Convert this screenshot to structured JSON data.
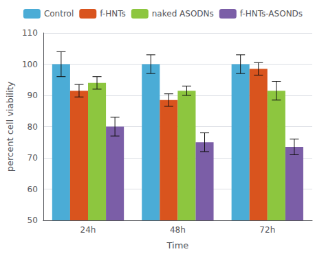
{
  "chart_data": {
    "type": "bar",
    "categories": [
      "24h",
      "48h",
      "72h"
    ],
    "series": [
      {
        "name": "Control",
        "color": "#4BACD6",
        "values": [
          100,
          100,
          100
        ],
        "errors": [
          4,
          3,
          3
        ]
      },
      {
        "name": "f-HNTs",
        "color": "#D9541E",
        "values": [
          91.5,
          88.5,
          98.5
        ],
        "errors": [
          2,
          2,
          2
        ]
      },
      {
        "name": "naked ASODNs",
        "color": "#8DC63F",
        "values": [
          94,
          91.5,
          91.5
        ],
        "errors": [
          2,
          1.5,
          3
        ]
      },
      {
        "name": "f-HNTs-ASONDs",
        "color": "#7B5EA7",
        "values": [
          80,
          75,
          73.5
        ],
        "errors": [
          3,
          3,
          2.5
        ]
      }
    ],
    "xlabel": "Time",
    "ylabel": "percent cell viability",
    "ylim": [
      50,
      110
    ],
    "yticks": [
      50,
      60,
      70,
      80,
      90,
      100,
      110
    ],
    "grid": true,
    "legend": "top"
  }
}
